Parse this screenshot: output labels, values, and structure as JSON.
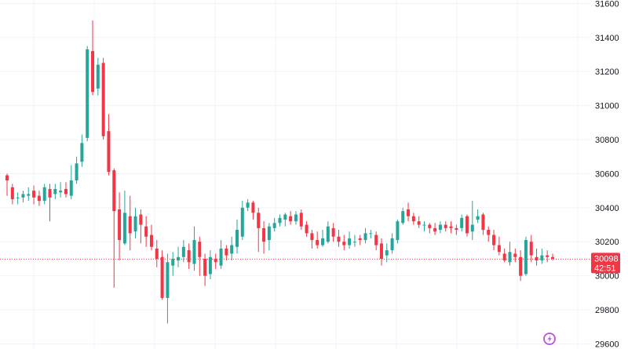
{
  "chart_data": {
    "type": "candlestick",
    "title": "",
    "xlabel": "",
    "ylabel": "",
    "ylim": [
      29570,
      31620
    ],
    "grid": true,
    "y_ticks": [
      "31600",
      "31400",
      "31200",
      "31000",
      "30800",
      "30600",
      "30400",
      "30200",
      "30000",
      "29800",
      "29600"
    ],
    "last_price": {
      "value": 30098,
      "label": "30098",
      "countdown": "42:51"
    },
    "colors": {
      "up": "#26a69a",
      "down": "#f23645",
      "grid": "#f0f3fa",
      "price_line": "#f23645",
      "text": "#131722",
      "logo": "#c04fe0"
    },
    "candles": [
      [
        30590,
        30560,
        30600,
        30470
      ],
      [
        30520,
        30450,
        30540,
        30420
      ],
      [
        30460,
        30460,
        30490,
        30420
      ],
      [
        30460,
        30480,
        30500,
        30430
      ],
      [
        30470,
        30480,
        30520,
        30440
      ],
      [
        30500,
        30460,
        30530,
        30420
      ],
      [
        30470,
        30440,
        30500,
        30410
      ],
      [
        30440,
        30520,
        30540,
        30420
      ],
      [
        30510,
        30460,
        30540,
        30320
      ],
      [
        30480,
        30510,
        30540,
        30450
      ],
      [
        30490,
        30500,
        30550,
        30460
      ],
      [
        30510,
        30480,
        30550,
        30460
      ],
      [
        30470,
        30560,
        30650,
        30450
      ],
      [
        30560,
        30660,
        30700,
        30540
      ],
      [
        30670,
        30780,
        30830,
        30640
      ],
      [
        30810,
        31330,
        31350,
        30790
      ],
      [
        31320,
        31080,
        31500,
        31060
      ],
      [
        31100,
        31240,
        31280,
        31060
      ],
      [
        31250,
        30820,
        31280,
        30800
      ],
      [
        30850,
        30610,
        30950,
        30590
      ],
      [
        30620,
        30380,
        30630,
        29930
      ],
      [
        30390,
        30210,
        30490,
        30090
      ],
      [
        30190,
        30370,
        30500,
        30180
      ],
      [
        30350,
        30250,
        30470,
        30150
      ],
      [
        30260,
        30350,
        30400,
        30220
      ],
      [
        30360,
        30300,
        30390,
        30190
      ],
      [
        30290,
        30230,
        30350,
        30170
      ],
      [
        30240,
        30170,
        30300,
        30150
      ],
      [
        30160,
        30100,
        30210,
        30050
      ],
      [
        30110,
        29870,
        30150,
        29860
      ],
      [
        29870,
        30080,
        30130,
        29720
      ],
      [
        30060,
        30100,
        30140,
        30000
      ],
      [
        30090,
        30110,
        30170,
        30050
      ],
      [
        30110,
        30170,
        30210,
        30080
      ],
      [
        30150,
        30080,
        30190,
        30040
      ],
      [
        30070,
        30210,
        30290,
        30030
      ],
      [
        30200,
        30110,
        30230,
        30000
      ],
      [
        30100,
        30000,
        30130,
        29940
      ],
      [
        30010,
        30110,
        30150,
        29980
      ],
      [
        30100,
        30080,
        30130,
        30040
      ],
      [
        30060,
        30160,
        30210,
        30040
      ],
      [
        30160,
        30120,
        30180,
        30090
      ],
      [
        30130,
        30180,
        30230,
        30090
      ],
      [
        30170,
        30270,
        30330,
        30130
      ],
      [
        30230,
        30400,
        30440,
        30210
      ],
      [
        30400,
        30430,
        30450,
        30380
      ],
      [
        30430,
        30370,
        30440,
        30330
      ],
      [
        30370,
        30280,
        30400,
        30140
      ],
      [
        30280,
        30200,
        30320,
        30130
      ],
      [
        30210,
        30290,
        30310,
        30150
      ],
      [
        30280,
        30310,
        30340,
        30260
      ],
      [
        30310,
        30340,
        30360,
        30290
      ],
      [
        30330,
        30360,
        30370,
        30290
      ],
      [
        30350,
        30320,
        30380,
        30300
      ],
      [
        30320,
        30360,
        30380,
        30300
      ],
      [
        30370,
        30290,
        30390,
        30270
      ],
      [
        30300,
        30250,
        30320,
        30230
      ],
      [
        30250,
        30210,
        30270,
        30160
      ],
      [
        30210,
        30180,
        30260,
        30160
      ],
      [
        30180,
        30220,
        30270,
        30170
      ],
      [
        30200,
        30290,
        30320,
        30190
      ],
      [
        30280,
        30230,
        30310,
        30200
      ],
      [
        30230,
        30200,
        30270,
        30170
      ],
      [
        30200,
        30180,
        30240,
        30150
      ],
      [
        30180,
        30220,
        30260,
        30160
      ],
      [
        30200,
        30200,
        30240,
        30170
      ],
      [
        30220,
        30210,
        30240,
        30180
      ],
      [
        30210,
        30250,
        30280,
        30190
      ],
      [
        30250,
        30250,
        30270,
        30220
      ],
      [
        30240,
        30180,
        30260,
        30150
      ],
      [
        30190,
        30100,
        30220,
        30060
      ],
      [
        30120,
        30150,
        30190,
        30080
      ],
      [
        30150,
        30220,
        30250,
        30130
      ],
      [
        30210,
        30320,
        30330,
        30190
      ],
      [
        30310,
        30380,
        30400,
        30300
      ],
      [
        30390,
        30350,
        30430,
        30320
      ],
      [
        30350,
        30320,
        30370,
        30300
      ],
      [
        30320,
        30300,
        30350,
        30280
      ],
      [
        30300,
        30300,
        30320,
        30260
      ],
      [
        30300,
        30280,
        30310,
        30250
      ],
      [
        30280,
        30260,
        30310,
        30240
      ],
      [
        30270,
        30300,
        30320,
        30250
      ],
      [
        30300,
        30280,
        30320,
        30260
      ],
      [
        30290,
        30280,
        30320,
        30250
      ],
      [
        30280,
        30270,
        30300,
        30240
      ],
      [
        30280,
        30340,
        30360,
        30260
      ],
      [
        30350,
        30250,
        30360,
        30230
      ],
      [
        30260,
        30300,
        30440,
        30210
      ],
      [
        30330,
        30350,
        30390,
        30310
      ],
      [
        30360,
        30270,
        30370,
        30240
      ],
      [
        30270,
        30240,
        30290,
        30200
      ],
      [
        30240,
        30180,
        30270,
        30150
      ],
      [
        30180,
        30140,
        30230,
        30120
      ],
      [
        30130,
        30090,
        30160,
        30080
      ],
      [
        30080,
        30140,
        30200,
        30060
      ],
      [
        30130,
        30110,
        30160,
        30080
      ],
      [
        30110,
        30000,
        30150,
        29970
      ],
      [
        30010,
        30210,
        30230,
        30000
      ],
      [
        30200,
        30120,
        30240,
        30080
      ],
      [
        30110,
        30090,
        30160,
        30060
      ],
      [
        30090,
        30120,
        30160,
        30070
      ],
      [
        30120,
        30110,
        30150,
        30080
      ],
      [
        30110,
        30100,
        30130,
        30090
      ]
    ]
  }
}
